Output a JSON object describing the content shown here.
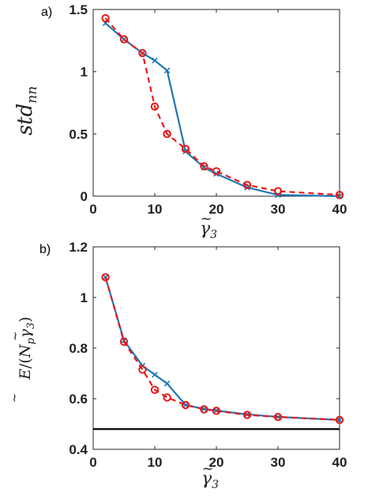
{
  "chart_data": [
    {
      "type": "line",
      "panel_label": "a)",
      "xlabel": "γ̃₃",
      "ylabel": "std_nn",
      "xlim": [
        0,
        40
      ],
      "ylim": [
        0,
        1.5
      ],
      "x_ticks": [
        0,
        10,
        20,
        30,
        40
      ],
      "y_ticks": [
        0,
        0.5,
        1,
        1.5
      ],
      "y_tick_labels": [
        "0",
        "0.5",
        "1",
        "1.5"
      ],
      "grid": false,
      "series": [
        {
          "color": "#1f77b4",
          "line_style": "solid",
          "marker": "x",
          "x": [
            2,
            5,
            8,
            10,
            12,
            15,
            18,
            20,
            25,
            30,
            40
          ],
          "y": [
            1.39,
            1.26,
            1.15,
            1.09,
            1.01,
            0.36,
            0.23,
            0.18,
            0.07,
            0.01,
            0.0
          ]
        },
        {
          "color": "#e41a1c",
          "line_style": "dashed",
          "marker": "circle",
          "x": [
            2,
            5,
            8,
            10,
            12,
            15,
            18,
            20,
            25,
            30,
            40
          ],
          "y": [
            1.43,
            1.26,
            1.15,
            0.72,
            0.5,
            0.38,
            0.24,
            0.2,
            0.09,
            0.04,
            0.01
          ]
        }
      ]
    },
    {
      "type": "line",
      "panel_label": "b)",
      "xlabel": "γ̃₃",
      "ylabel": "Ẽ/(N_p γ̃₃)",
      "xlim": [
        0,
        40
      ],
      "ylim": [
        0.4,
        1.2
      ],
      "x_ticks": [
        0,
        10,
        20,
        30,
        40
      ],
      "y_ticks": [
        0.4,
        0.6,
        0.8,
        1.0,
        1.2
      ],
      "y_tick_labels": [
        "0.4",
        "0.6",
        "0.8",
        "1",
        "1.2"
      ],
      "grid": false,
      "reference_line": {
        "y": 0.48,
        "color": "#000000"
      },
      "series": [
        {
          "color": "#1f77b4",
          "line_style": "solid",
          "marker": "x",
          "x": [
            2,
            5,
            8,
            10,
            12,
            15,
            18,
            20,
            25,
            30,
            40
          ],
          "y": [
            1.08,
            0.83,
            0.73,
            0.695,
            0.66,
            0.575,
            0.56,
            0.553,
            0.538,
            0.528,
            0.516
          ]
        },
        {
          "color": "#e41a1c",
          "line_style": "dashed",
          "marker": "circle",
          "x": [
            2,
            5,
            8,
            10,
            12,
            15,
            18,
            20,
            25,
            30,
            40
          ],
          "y": [
            1.08,
            0.825,
            0.715,
            0.635,
            0.605,
            0.575,
            0.558,
            0.552,
            0.536,
            0.528,
            0.516
          ]
        }
      ]
    }
  ]
}
